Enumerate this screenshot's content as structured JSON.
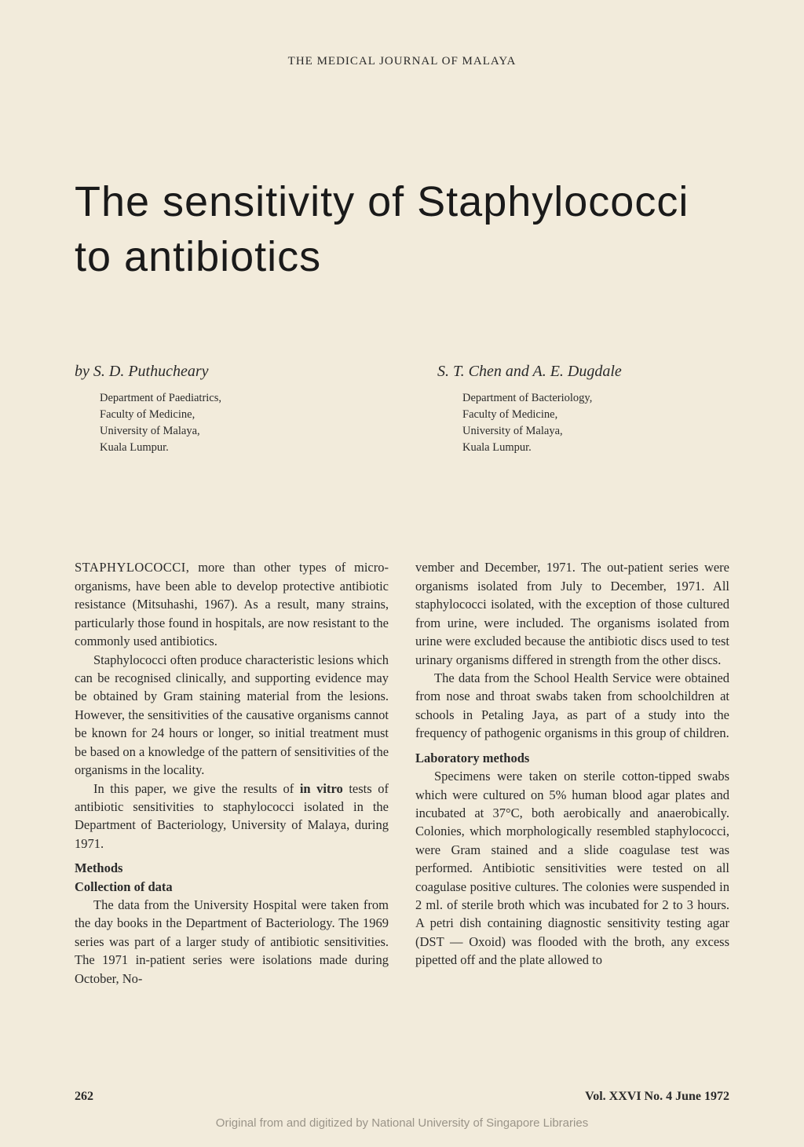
{
  "journal_header": "THE MEDICAL JOURNAL OF MALAYA",
  "article_title": "The sensitivity of Staphylococci to antibiotics",
  "authors": {
    "left": {
      "name": "by S. D. Puthucheary",
      "affiliation_lines": [
        "Department of Paediatrics,",
        "Faculty of Medicine,",
        "University of Malaya,",
        "Kuala Lumpur."
      ]
    },
    "right": {
      "name": "S. T. Chen and A. E. Dugdale",
      "affiliation_lines": [
        "Department of Bacteriology,",
        "Faculty of Medicine,",
        "University of Malaya,",
        "Kuala Lumpur."
      ]
    }
  },
  "body": {
    "left_column": {
      "para1_firstword": "STAPHYLOCOCCI,",
      "para1_rest": " more than other types of micro-organisms, have been able to develop protective antibiotic resistance (Mitsuhashi, 1967). As a result, many strains, particularly those found in hospitals, are now resistant to the commonly used antibiotics.",
      "para2": "Staphylococci often produce characteristic lesions which can be recognised clinically, and supporting evidence may be obtained by Gram staining material from the lesions. However, the sensitivities of the causative organisms cannot be known for 24 hours or longer, so initial treatment must be based on a knowledge of the pattern of sensitivities of the organisms in the locality.",
      "para3_pre": "In this paper, we give the results of ",
      "para3_bold": "in vitro",
      "para3_post": " tests of antibiotic sensitivities to staphylococci isolated in the Department of Bacteriology, University of Malaya, during 1971.",
      "methods_heading": "Methods",
      "collection_heading": "Collection of data",
      "para4": "The data from the University Hospital were taken from the day books in the Department of Bacteriology. The 1969 series was part of a larger study of antibiotic sensitivities. The 1971 in-patient series were isolations made during October, No-"
    },
    "right_column": {
      "para1": "vember and December, 1971. The out-patient series were organisms isolated from July to December, 1971. All staphylococci isolated, with the exception of those cultured from urine, were included. The organisms isolated from urine were excluded because the antibiotic discs used to test urinary organisms differed in strength from the other discs.",
      "para2": "The data from the School Health Service were obtained from nose and throat swabs taken from schoolchildren at schools in Petaling Jaya, as part of a study into the frequency of pathogenic organisms in this group of children.",
      "lab_heading": "Laboratory methods",
      "para3": "Specimens were taken on sterile cotton-tipped swabs which were cultured on 5% human blood agar plates and incubated at 37°C, both aerobically and anaerobically. Colonies, which morphologically resembled staphylococci, were Gram stained and a slide coagulase test was performed. Antibiotic sensitivities were tested on all coagulase positive cultures. The colonies were suspended in 2 ml. of sterile broth which was incubated for 2 to 3 hours. A petri dish containing diagnostic sensitivity testing agar (DST — Oxoid) was flooded with the broth, any excess pipetted off and the plate allowed to"
    }
  },
  "footer": {
    "page_number": "262",
    "volume": "Vol. XXVI No. 4 June 1972"
  },
  "digitized_note": "Original from and digitized by National University of Singapore Libraries",
  "colors": {
    "background": "#f2ebdb",
    "text": "#2a2a2a",
    "title": "#1a1a1a",
    "watermark": "#9a9488"
  },
  "typography": {
    "body_fontsize": 16.5,
    "title_fontsize": 54,
    "author_fontsize": 20,
    "affiliation_fontsize": 14.5,
    "header_fontsize": 15
  }
}
